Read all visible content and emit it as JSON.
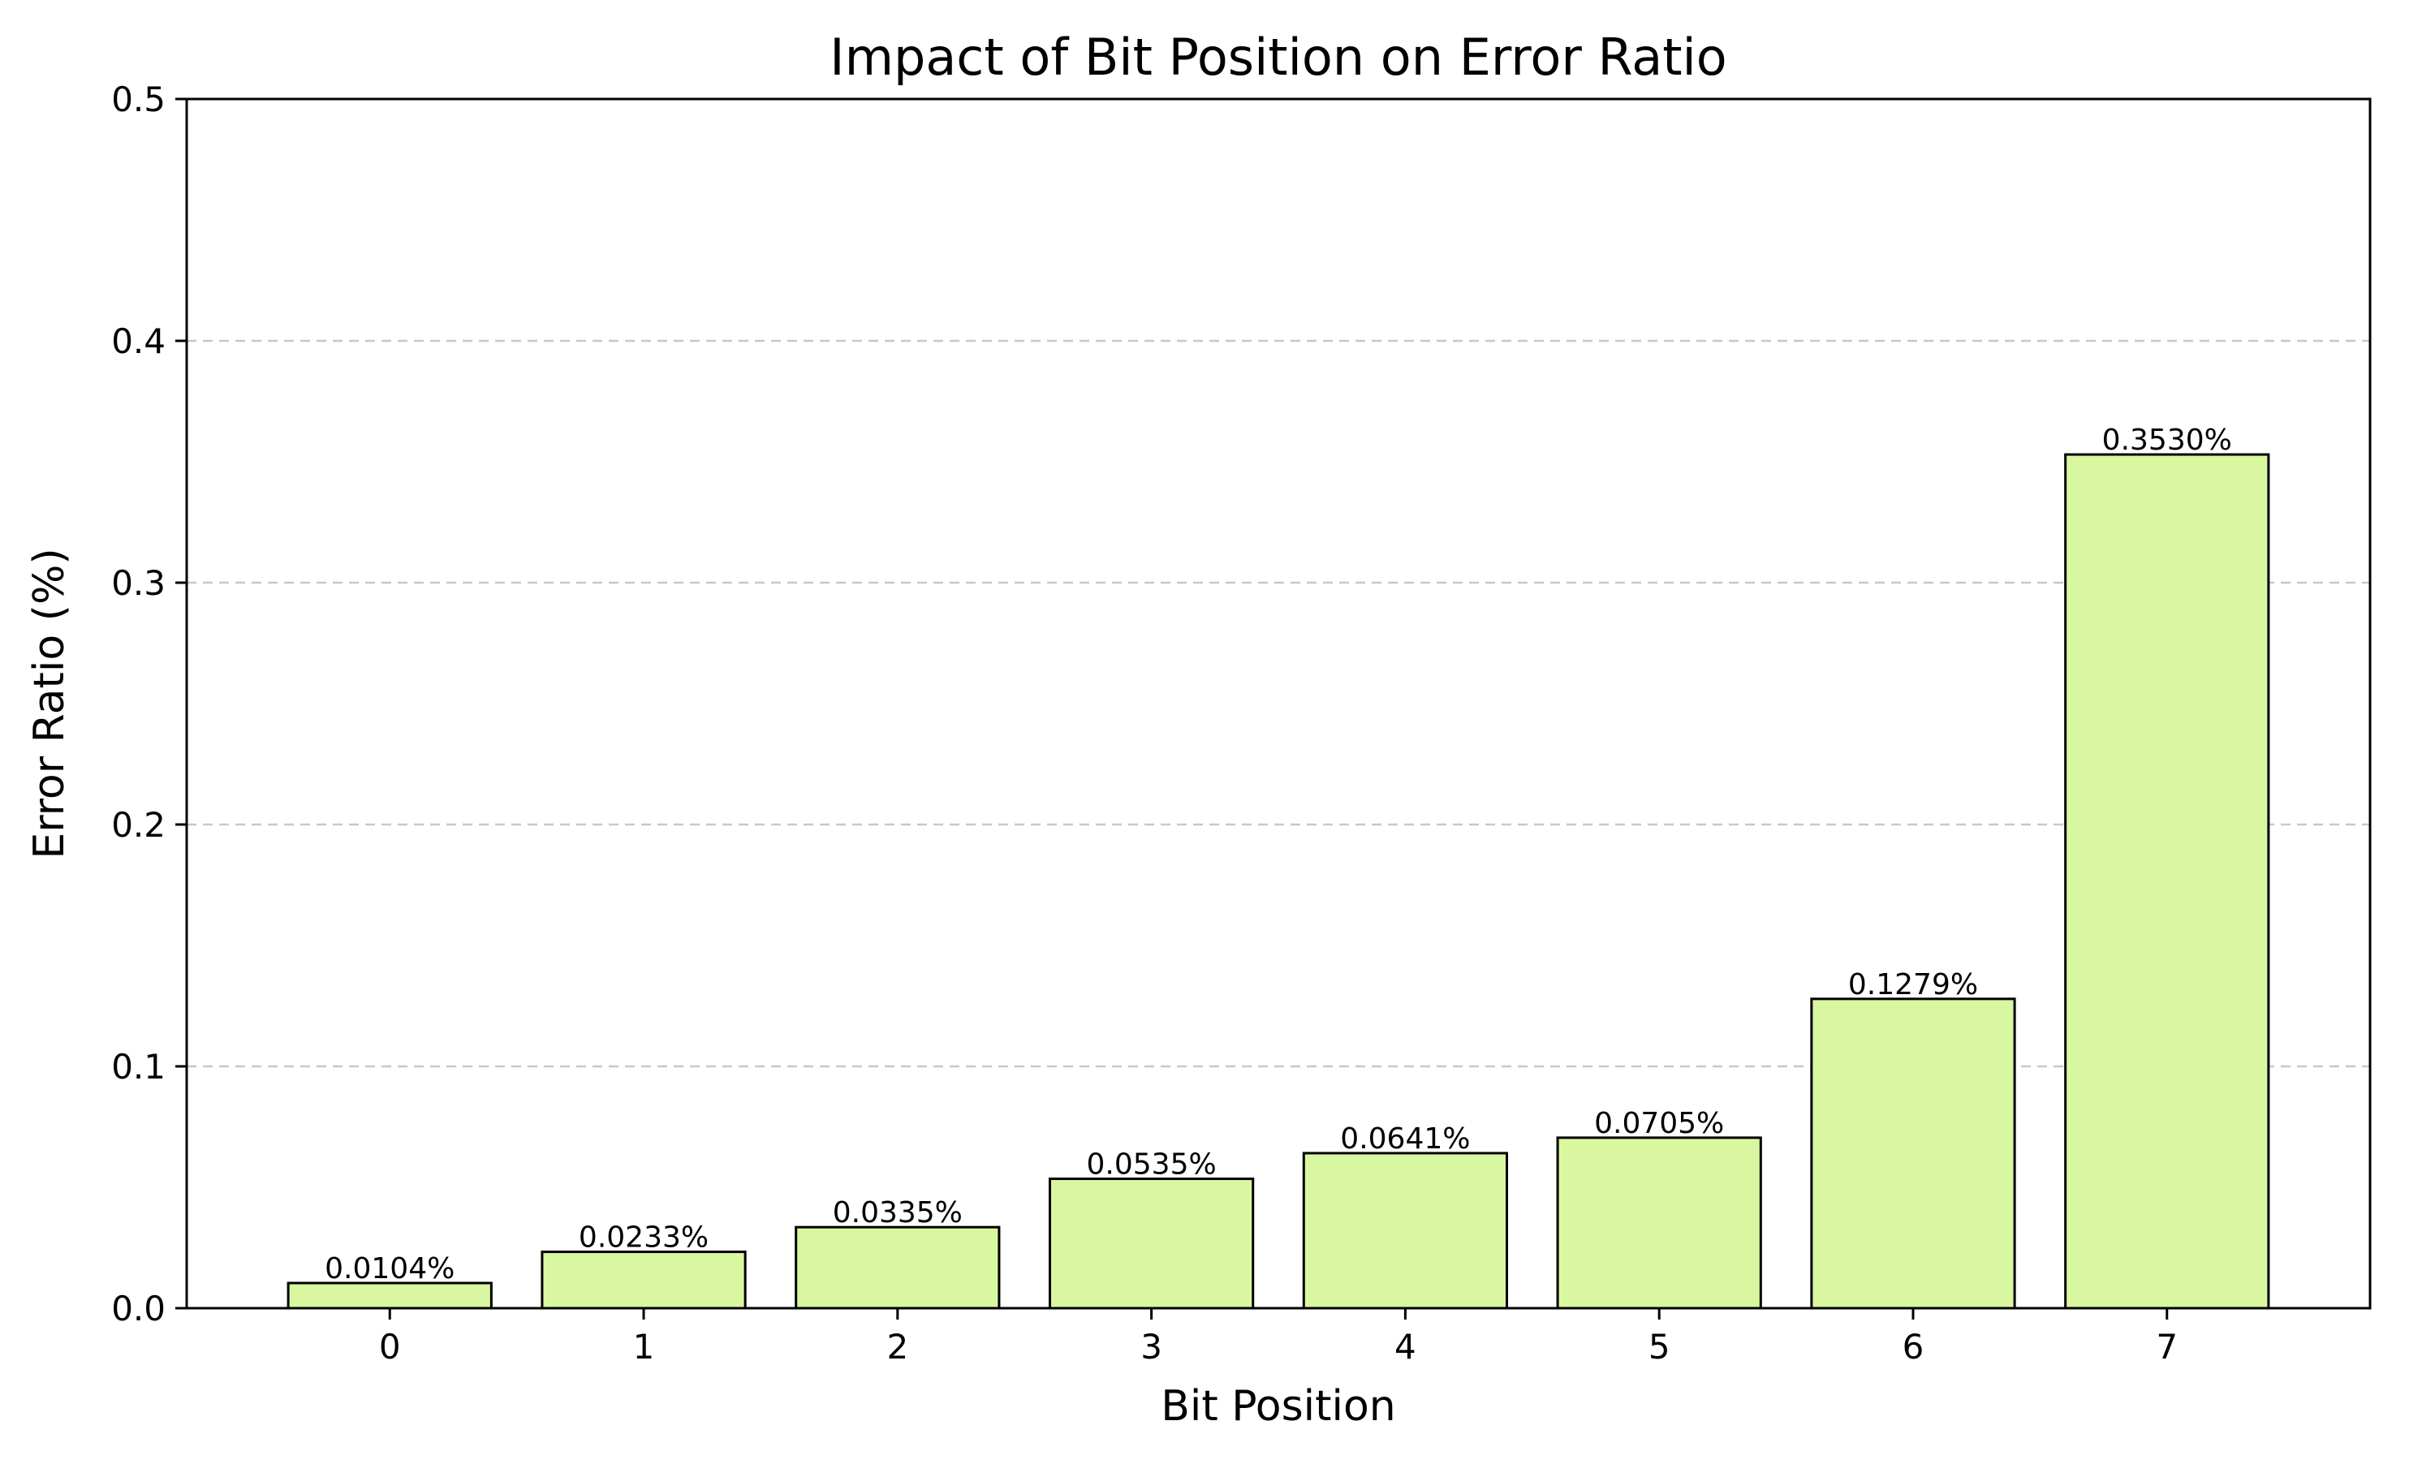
{
  "chart_data": {
    "type": "bar",
    "title": "Impact of Bit Position on Error Ratio",
    "xlabel": "Bit Position",
    "ylabel": "Error Ratio (%)",
    "categories": [
      "0",
      "1",
      "2",
      "3",
      "4",
      "5",
      "6",
      "7"
    ],
    "values": [
      0.0104,
      0.0233,
      0.0335,
      0.0535,
      0.0641,
      0.0705,
      0.1279,
      0.353
    ],
    "value_labels": [
      "0.0104%",
      "0.0233%",
      "0.0335%",
      "0.0535%",
      "0.0641%",
      "0.0705%",
      "0.1279%",
      "0.3530%"
    ],
    "ylim": [
      0,
      0.5
    ],
    "yticks": [
      0.0,
      0.1,
      0.2,
      0.3,
      0.4,
      0.5
    ],
    "ytick_labels": [
      "0.0",
      "0.1",
      "0.2",
      "0.3",
      "0.4",
      "0.5"
    ],
    "grid": "y-dashed",
    "bar_color": "#d9f7a0",
    "edge_color": "#000000",
    "grid_color": "#c8c8c8"
  }
}
